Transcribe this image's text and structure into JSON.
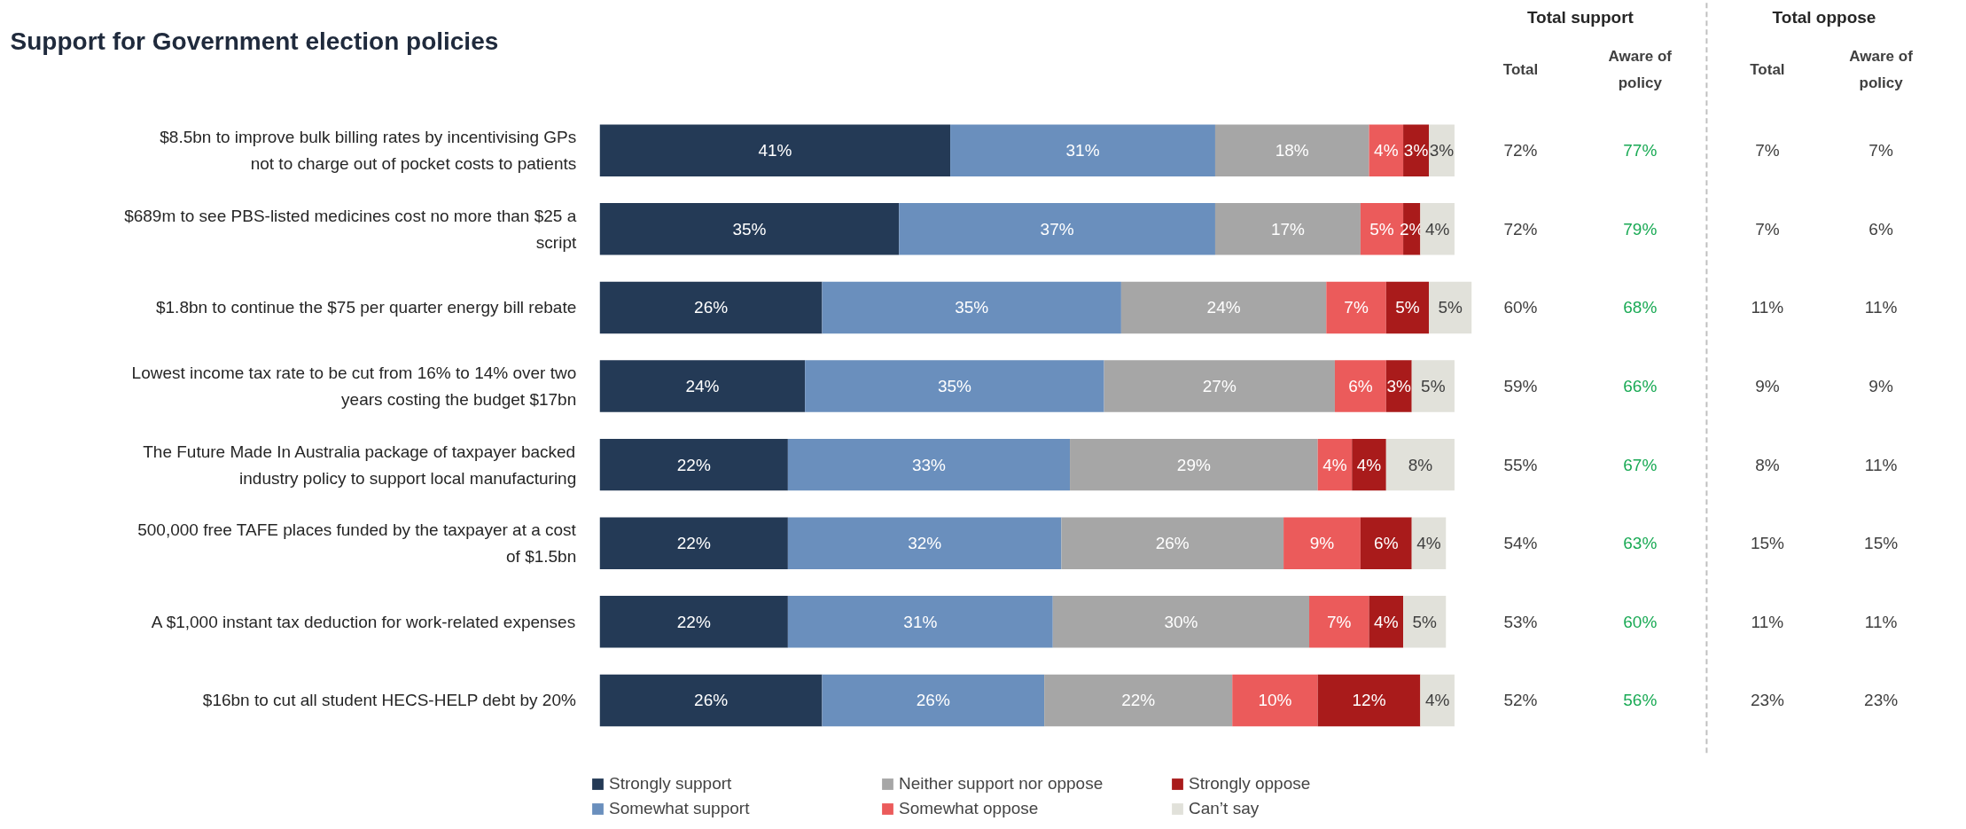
{
  "chart_data": {
    "type": "bar",
    "orientation": "horizontal",
    "stacked": true,
    "title": "Support for Government election policies",
    "legend": "bottom",
    "grid": false,
    "tick_labels": "y",
    "categories": [
      "$8.5bn to improve bulk billing rates by incentivising GPs not to charge out of pocket costs to patients",
      "$689m to see PBS-listed medicines cost no more than $25 a script",
      "$1.8bn to continue the $75 per quarter energy bill rebate",
      "Lowest income tax rate to be cut from 16% to 14% over two years costing the budget $17bn",
      "The Future Made In Australia package of taxpayer backed industry policy to support local manufacturing",
      "500,000 free TAFE places funded by the taxpayer at a cost of $1.5bn",
      "A $1,000 instant tax deduction for work-related expenses",
      "$16bn to cut all student HECS-HELP debt by 20%"
    ],
    "series": [
      {
        "name": "Strongly support",
        "color": "#243a56",
        "values": [
          41,
          35,
          26,
          24,
          22,
          22,
          22,
          26
        ],
        "value_labels": [
          "41%",
          "35%",
          "26%",
          "24%",
          "22%",
          "22%",
          "22%",
          "26%"
        ]
      },
      {
        "name": "Somewhat support",
        "color": "#6a8fbd",
        "values": [
          31,
          37,
          35,
          35,
          33,
          32,
          31,
          26
        ],
        "value_labels": [
          "31%",
          "37%",
          "35%",
          "35%",
          "33%",
          "32%",
          "31%",
          "26%"
        ]
      },
      {
        "name": "Neither support nor oppose",
        "color": "#a6a6a6",
        "values": [
          18,
          17,
          24,
          27,
          29,
          26,
          30,
          22
        ],
        "value_labels": [
          "18%",
          "17%",
          "24%",
          "27%",
          "29%",
          "26%",
          "30%",
          "22%"
        ]
      },
      {
        "name": "Somewhat oppose",
        "color": "#eb5b5b",
        "values": [
          4,
          5,
          7,
          6,
          4,
          9,
          7,
          10
        ],
        "value_labels": [
          "4%",
          "5%",
          "7%",
          "6%",
          "4%",
          "9%",
          "7%",
          "10%"
        ]
      },
      {
        "name": "Strongly oppose",
        "color": "#a91b1b",
        "values": [
          3,
          2,
          5,
          3,
          4,
          6,
          4,
          12
        ],
        "value_labels": [
          "3%",
          "2%",
          "5%",
          "3%",
          "4%",
          "6%",
          "4%",
          "12%"
        ]
      },
      {
        "name": "Can’t say",
        "color": "#e1e1da",
        "values": [
          3,
          4,
          5,
          5,
          8,
          4,
          5,
          4
        ],
        "value_labels": [
          "3%",
          "4%",
          "5%",
          "5%",
          "8%",
          "4%",
          "5%",
          "4%"
        ]
      }
    ],
    "annotations": [
      "Total support",
      "Total oppose",
      "Total",
      "Aware of policy",
      "Total",
      "Aware of policy",
      "72%",
      "77%",
      "7%",
      "7%",
      "72%",
      "79%",
      "7%",
      "6%",
      "60%",
      "68%",
      "11%",
      "11%",
      "59%",
      "66%",
      "9%",
      "9%",
      "55%",
      "67%",
      "8%",
      "11%",
      "54%",
      "63%",
      "15%",
      "15%",
      "53%",
      "60%",
      "11%",
      "11%",
      "52%",
      "56%",
      "23%",
      "23%"
    ]
  }
}
